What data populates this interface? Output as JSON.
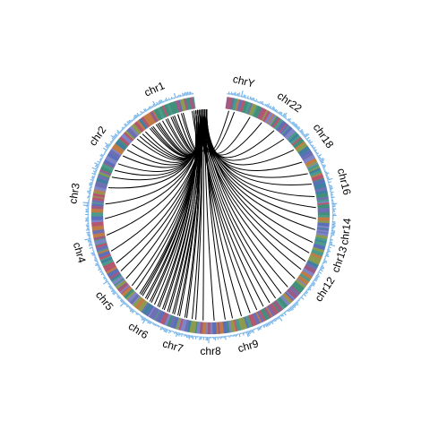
{
  "chart_data": {
    "type": "circos",
    "title": "",
    "chromosome_labels": [
      {
        "name": "chr1",
        "angle": 336
      },
      {
        "name": "chr2",
        "angle": 305
      },
      {
        "name": "chr3",
        "angle": 279
      },
      {
        "name": "chr4",
        "angle": 254
      },
      {
        "name": "chr5",
        "angle": 231
      },
      {
        "name": "chr6",
        "angle": 212
      },
      {
        "name": "chr7",
        "angle": 196
      },
      {
        "name": "chr8",
        "angle": 180
      },
      {
        "name": "chr9",
        "angle": 164
      },
      {
        "name": "chr12",
        "angle": 123
      },
      {
        "name": "chr13",
        "angle": 109
      },
      {
        "name": "chr14",
        "angle": 97
      },
      {
        "name": "chr16",
        "angle": 76
      },
      {
        "name": "chr18",
        "angle": 55
      },
      {
        "name": "chr22",
        "angle": 35
      },
      {
        "name": "chrY",
        "angle": 14
      }
    ],
    "ideogram_span_degrees": [
      8,
      352
    ],
    "segment_colors": [
      "#6e6fb3",
      "#3f8f7a",
      "#b4566f",
      "#7f84c6",
      "#4c9a8a",
      "#9a5b84",
      "#5b6fb8",
      "#c07a45",
      "#3f7fa0",
      "#8a9a4e"
    ],
    "outer_track_color": "#6fb0e8",
    "link_color": "#000000",
    "link_hub": [
      0.03,
      0.04
    ],
    "links": [
      [
        -5,
        340
      ],
      [
        -6,
        336
      ],
      [
        -6,
        331
      ],
      [
        -5,
        327
      ],
      [
        -5,
        322
      ],
      [
        -4,
        318
      ],
      [
        -3,
        345
      ],
      [
        -2,
        350
      ],
      [
        -4,
        342
      ],
      [
        -5,
        338
      ],
      [
        -7,
        333
      ],
      [
        -6,
        329
      ],
      [
        -4,
        325
      ],
      [
        -3,
        320
      ],
      [
        -5,
        316
      ],
      [
        -6,
        312
      ],
      [
        -4,
        308
      ],
      [
        -3,
        304
      ],
      [
        -5,
        299
      ],
      [
        -4,
        295
      ],
      [
        -3,
        291
      ],
      [
        -4,
        285
      ],
      [
        -3,
        276
      ],
      [
        -3,
        268
      ],
      [
        -4,
        259
      ],
      [
        -3,
        250
      ],
      [
        -4,
        243
      ],
      [
        -4,
        238
      ],
      [
        -5,
        233
      ],
      [
        -6,
        228
      ],
      [
        -6,
        225
      ],
      [
        -7,
        222
      ],
      [
        -7,
        220
      ],
      [
        -8,
        217
      ],
      [
        -8,
        214
      ],
      [
        -9,
        212
      ],
      [
        -8,
        209
      ],
      [
        -7,
        206
      ],
      [
        -6,
        203
      ],
      [
        -5,
        200
      ],
      [
        -7,
        197
      ],
      [
        -6,
        193
      ],
      [
        -5,
        188
      ],
      [
        -4,
        184
      ],
      [
        -3,
        178
      ],
      [
        -2,
        172
      ],
      [
        -3,
        168
      ],
      [
        -4,
        163
      ],
      [
        -5,
        158
      ],
      [
        -6,
        154
      ],
      [
        -6,
        150
      ],
      [
        -5,
        146
      ],
      [
        -4,
        142
      ],
      [
        -3,
        138
      ],
      [
        -2,
        133
      ],
      [
        -3,
        127
      ],
      [
        -4,
        121
      ],
      [
        -3,
        116
      ],
      [
        -2,
        111
      ],
      [
        -3,
        105
      ],
      [
        -4,
        98
      ],
      [
        -3,
        92
      ],
      [
        -2,
        86
      ],
      [
        -3,
        80
      ],
      [
        -2,
        73
      ],
      [
        -3,
        67
      ],
      [
        -4,
        60
      ],
      [
        -3,
        52
      ],
      [
        -2,
        44
      ],
      [
        -3,
        37
      ],
      [
        -3,
        29
      ],
      [
        -2,
        22
      ],
      [
        -4,
        13
      ],
      [
        -5,
        10
      ],
      [
        -6,
        342
      ],
      [
        -7,
        335
      ],
      [
        -8,
        330
      ],
      [
        -6,
        326
      ],
      [
        -4,
        344
      ],
      [
        -3,
        339
      ],
      [
        -5,
        221
      ],
      [
        -6,
        218
      ],
      [
        -7,
        215
      ],
      [
        -8,
        210
      ],
      [
        -6,
        207
      ],
      [
        -5,
        204
      ],
      [
        -4,
        201
      ],
      [
        -6,
        198
      ],
      [
        -7,
        194
      ],
      [
        -5,
        190
      ]
    ]
  }
}
